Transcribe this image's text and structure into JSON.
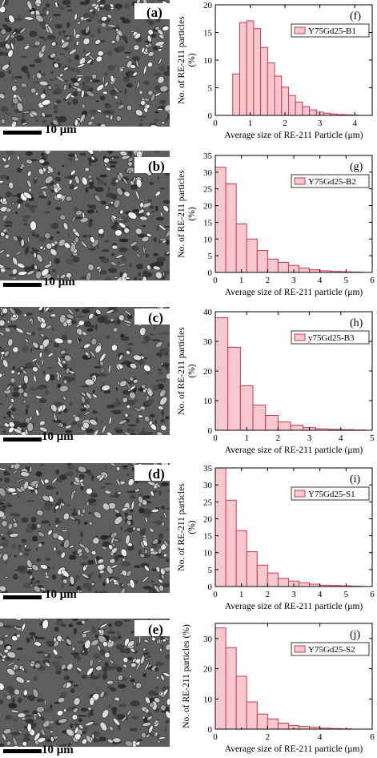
{
  "sem_panels": [
    {
      "label": "(a)",
      "scale_label": "10 μm"
    },
    {
      "label": "(b)",
      "scale_label": "10 μm"
    },
    {
      "label": "(c)",
      "scale_label": "10 μm"
    },
    {
      "label": "(d)",
      "scale_label": "10 μm"
    },
    {
      "label": "(e)",
      "scale_label": "10 μm"
    }
  ],
  "colors": {
    "bar_fill": "#f7c9cf",
    "bar_stroke": "#d0394b",
    "sem_bg": "#6b6b6b"
  },
  "chart_data": [
    {
      "type": "bar",
      "panel": "(f)",
      "legend": "Y75Gd25-B1",
      "xlabel": "Average size of RE-211 Particle (μm)",
      "ylabel": "No. of RE-211 particles (%)",
      "ylabel_lines": [
        "No. of RE-211 particles",
        "(%)"
      ],
      "xlim": [
        0,
        4.5
      ],
      "ylim": [
        0,
        20
      ],
      "xticks": [
        0,
        1,
        2,
        3,
        4
      ],
      "yticks": [
        0,
        5,
        10,
        15,
        20
      ],
      "bin_width": 0.2,
      "x": [
        0.6,
        0.8,
        1.0,
        1.2,
        1.4,
        1.6,
        1.8,
        2.0,
        2.2,
        2.4,
        2.6,
        2.8,
        3.0,
        3.2,
        3.4,
        3.6,
        3.8,
        4.0
      ],
      "values": [
        7.5,
        16.8,
        17.1,
        15.7,
        12.3,
        9.5,
        7.1,
        5.1,
        3.6,
        2.4,
        1.6,
        1.0,
        0.6,
        0.4,
        0.25,
        0.15,
        0.1,
        0.05
      ]
    },
    {
      "type": "bar",
      "panel": "(g)",
      "legend": "Y75Gd25-B2",
      "xlabel": "Average size of RE-211 particle (μm)",
      "ylabel": "No. of RE-211 particles (%)",
      "ylabel_lines": [
        "No. of RE-211 particles",
        "(%)"
      ],
      "xlim": [
        0,
        6
      ],
      "ylim": [
        0,
        35
      ],
      "xticks": [
        0,
        1,
        2,
        3,
        4,
        5,
        6
      ],
      "yticks": [
        0,
        5,
        10,
        15,
        20,
        25,
        30,
        35
      ],
      "bin_width": 0.4,
      "x": [
        0.2,
        0.6,
        1.0,
        1.4,
        1.8,
        2.2,
        2.6,
        3.0,
        3.4,
        3.8,
        4.2,
        4.6,
        5.0,
        5.4
      ],
      "values": [
        31.5,
        26.5,
        14.5,
        10.0,
        6.6,
        4.0,
        3.0,
        2.1,
        1.3,
        0.8,
        0.5,
        0.3,
        0.2,
        0.1
      ]
    },
    {
      "type": "bar",
      "panel": "(h)",
      "legend": "y75Gd25-B3",
      "xlabel": "Average size of RE-211 particle (μm)",
      "ylabel": "No. of RE-211 particles (%)",
      "ylabel_lines": [
        "No. of RE-211 particles",
        "(%)"
      ],
      "xlim": [
        0,
        5
      ],
      "ylim": [
        0,
        40
      ],
      "xticks": [
        0,
        1,
        2,
        3,
        4,
        5
      ],
      "yticks": [
        0,
        10,
        20,
        30,
        40
      ],
      "bin_width": 0.4,
      "x": [
        0.2,
        0.6,
        1.0,
        1.4,
        1.8,
        2.2,
        2.6,
        3.0,
        3.4,
        3.8,
        4.2,
        4.6
      ],
      "values": [
        38.0,
        28.0,
        15.0,
        8.5,
        5.0,
        2.8,
        1.7,
        0.9,
        0.5,
        0.3,
        0.2,
        0.1
      ]
    },
    {
      "type": "bar",
      "panel": "(i)",
      "legend": "Y75Gd25-S1",
      "xlabel": "Average size of RE-211 particle (μm)",
      "ylabel": "No. of RE-211 particles (%)",
      "ylabel_lines": [
        "No. of RE-211 particles",
        "(%)"
      ],
      "xlim": [
        0,
        6
      ],
      "ylim": [
        0,
        35
      ],
      "xticks": [
        0,
        1,
        2,
        3,
        4,
        5,
        6
      ],
      "yticks": [
        0,
        5,
        10,
        15,
        20,
        25,
        30,
        35
      ],
      "bin_width": 0.4,
      "x": [
        0.2,
        0.6,
        1.0,
        1.4,
        1.8,
        2.2,
        2.6,
        3.0,
        3.4,
        3.8,
        4.2,
        4.6,
        5.0,
        5.4
      ],
      "values": [
        35.0,
        25.5,
        16.5,
        10.3,
        6.3,
        4.0,
        2.4,
        1.6,
        1.1,
        0.7,
        0.4,
        0.3,
        0.2,
        0.1
      ]
    },
    {
      "type": "bar",
      "panel": "(j)",
      "legend": "Y75Gd25-S2",
      "xlabel": "Average size of RE-211 particle (μm)",
      "ylabel": "No. of RE-211 particles (%)",
      "ylabel_lines": [
        "No. of RE-211 particles (%)"
      ],
      "xlim": [
        0,
        6
      ],
      "ylim": [
        0,
        35
      ],
      "xticks": [
        0,
        2,
        4,
        6
      ],
      "xticks_minor": [
        1,
        3,
        5
      ],
      "yticks": [
        0,
        10,
        20,
        30
      ],
      "bin_width": 0.4,
      "x": [
        0.2,
        0.6,
        1.0,
        1.4,
        1.8,
        2.2,
        2.6,
        3.0,
        3.4,
        3.8,
        4.2,
        4.6,
        5.0
      ],
      "values": [
        33.5,
        27.0,
        17.5,
        9.0,
        5.0,
        3.4,
        2.0,
        1.2,
        0.9,
        0.6,
        0.35,
        0.2,
        0.1
      ]
    }
  ]
}
